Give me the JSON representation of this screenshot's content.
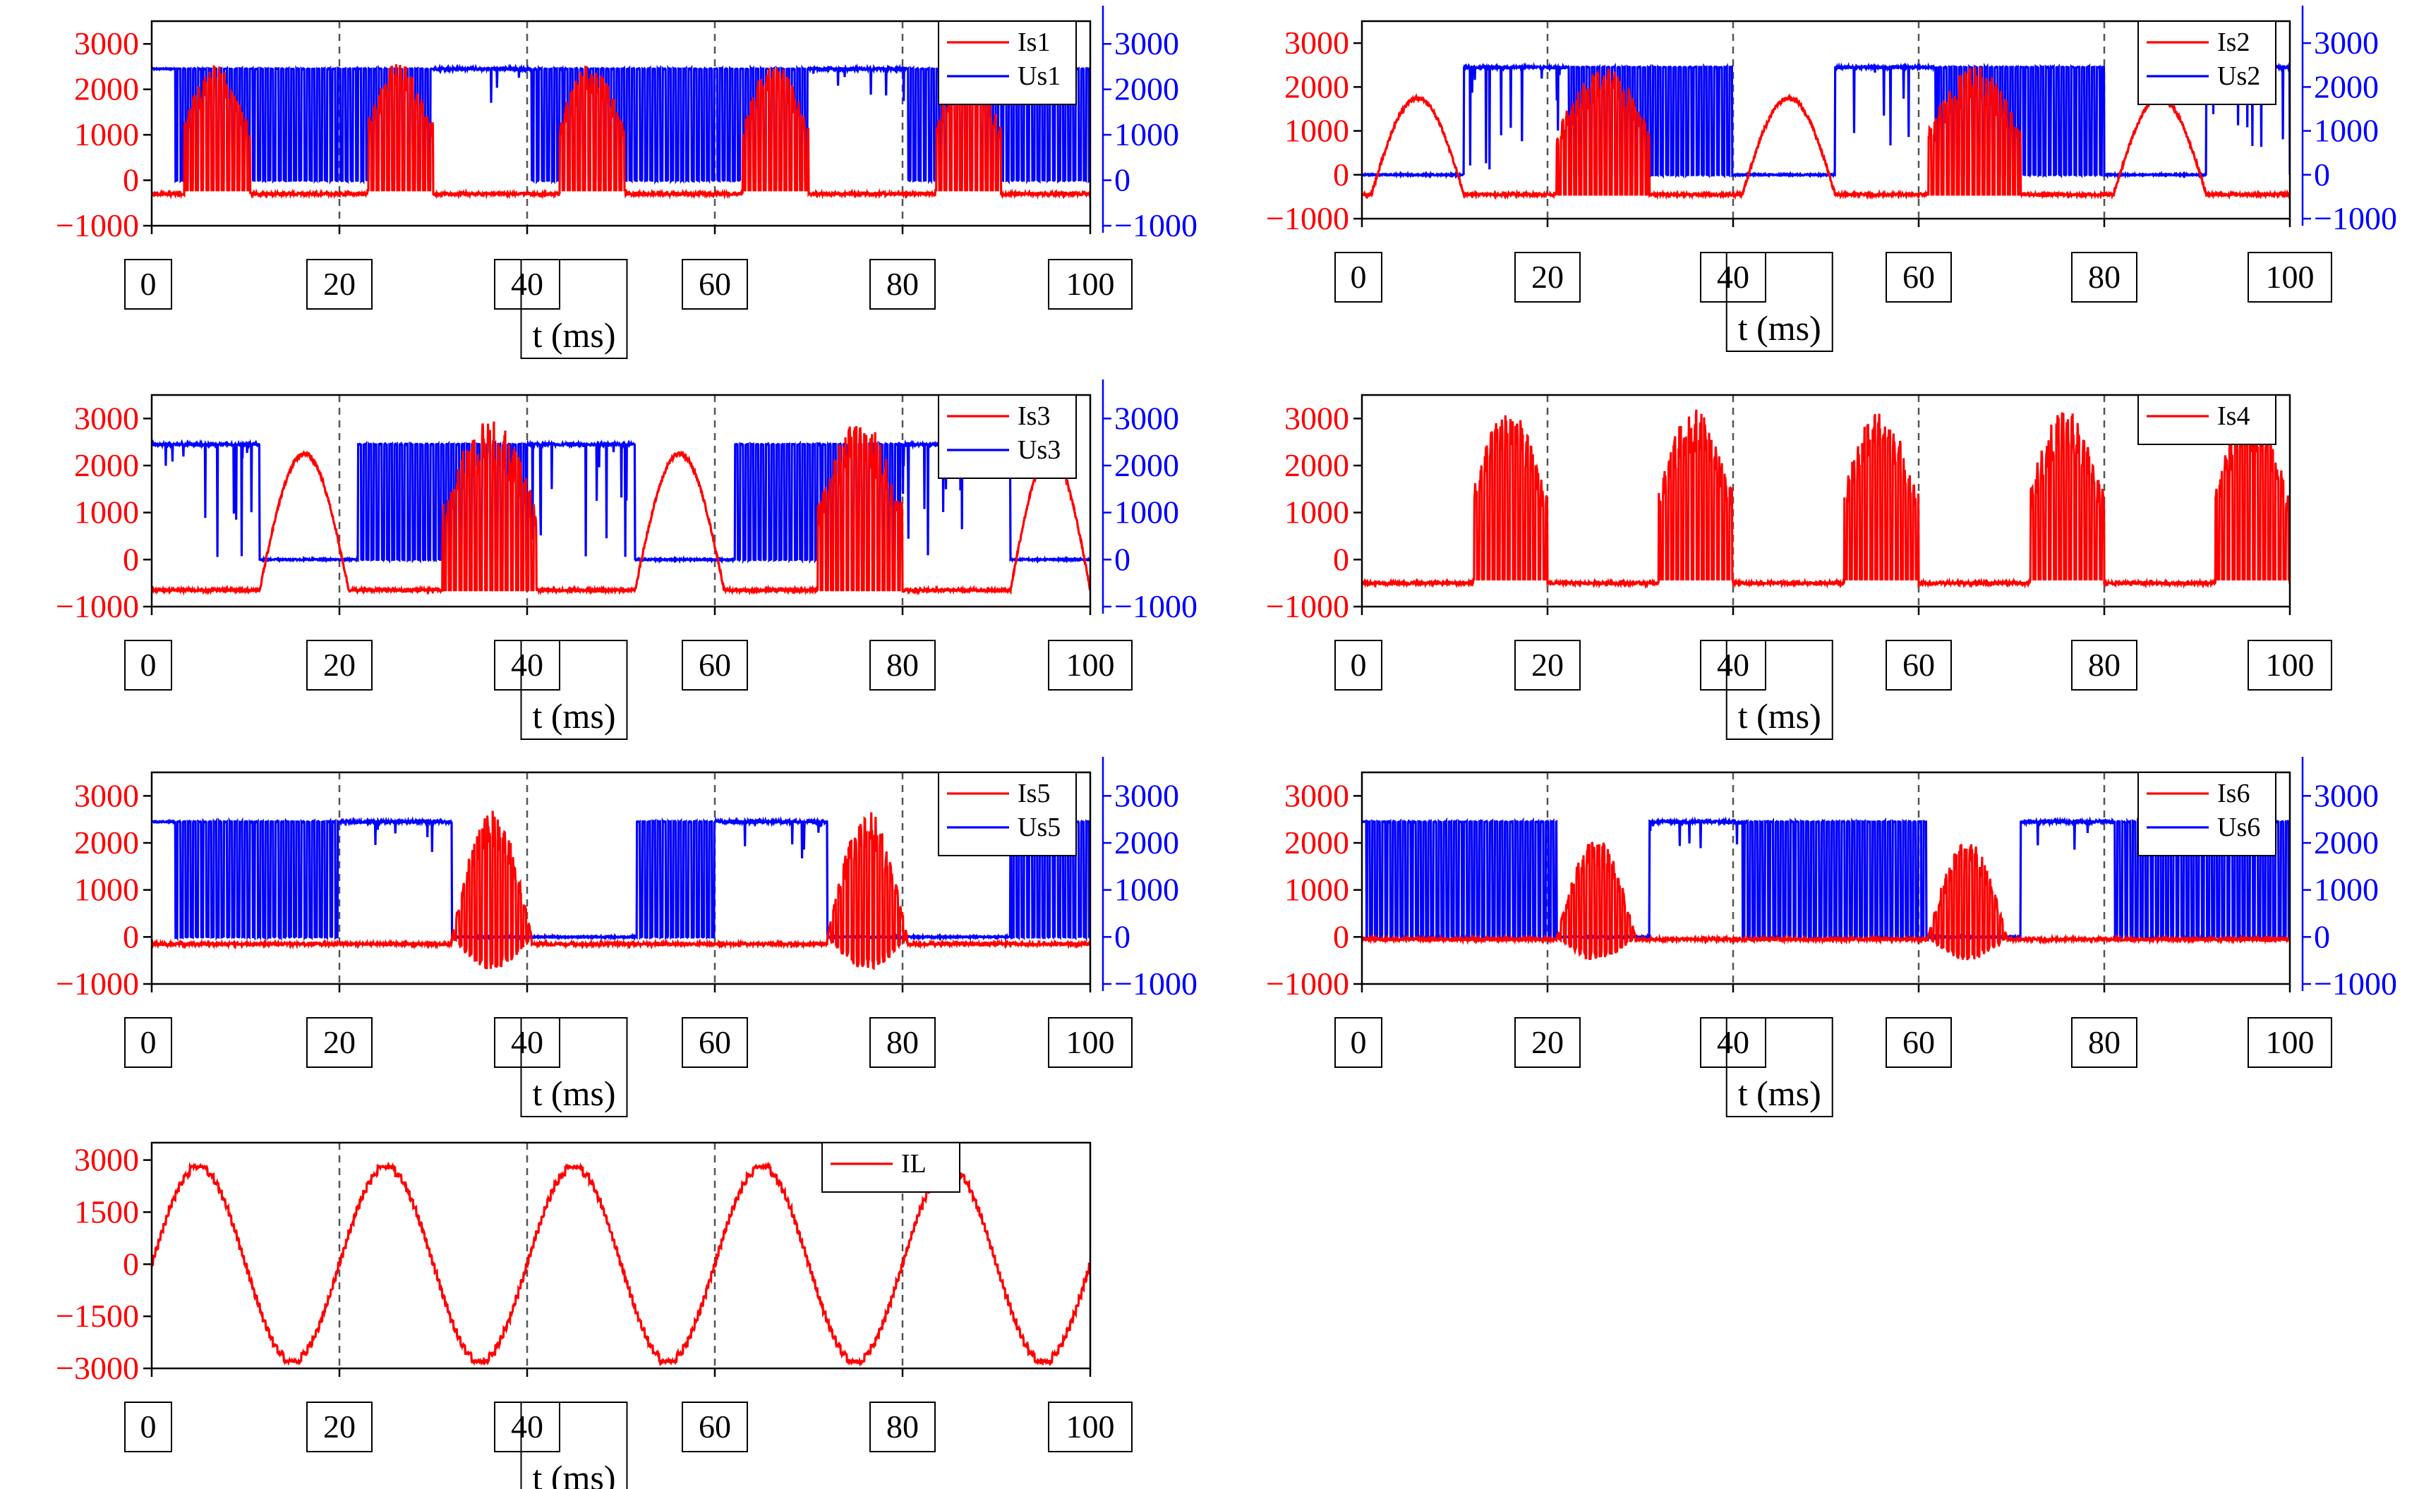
{
  "figure": {
    "xlabel": "t (ms)",
    "colors": {
      "current": "#ff0000",
      "voltage": "#0000ff",
      "axis": "#000000",
      "grid": "#555555"
    }
  },
  "chart_data": [
    {
      "id": "s1",
      "type": "line",
      "x": {
        "label": "t (ms)",
        "range": [
          0,
          100
        ],
        "ticks": [
          0,
          20,
          40,
          60,
          80,
          100
        ],
        "ticklabels": [
          "0",
          "20",
          "40",
          "60",
          "80",
          "100"
        ]
      },
      "yleft": {
        "range": [
          -1000,
          3500
        ],
        "ticks": [
          -1000,
          0,
          1000,
          2000,
          3000
        ],
        "ticklabels": [
          "−1000",
          "0",
          "1000",
          "2000",
          "3000"
        ]
      },
      "yright": {
        "range": [
          -1000,
          3500
        ],
        "ticks": [
          -1000,
          0,
          1000,
          2000,
          3000
        ],
        "ticklabels": [
          "−1000",
          "0",
          "1000",
          "2000",
          "3000"
        ]
      },
      "grid_x": [
        20,
        40,
        60,
        80
      ],
      "series": [
        {
          "name": "Is1",
          "axis": "left",
          "color": "#ff0000",
          "kind": "switchcurrent",
          "on_windows": [
            [
              3.5,
              10.5
            ],
            [
              23,
              30
            ],
            [
              43.5,
              50.5
            ],
            [
              63,
              70
            ],
            [
              83.5,
              90.5
            ]
          ],
          "pulse_peak": 2600,
          "base": -300
        },
        {
          "name": "Us1",
          "axis": "right",
          "color": "#0000ff",
          "kind": "switchvoltage",
          "blocked": [
            [
              30,
              40.5
            ],
            [
              70,
              80.5
            ]
          ],
          "pulse_start": 2.5,
          "high": 2450,
          "low": 0,
          "spikes": [
            10.8,
            11.5,
            12.1,
            12.8
          ]
        }
      ]
    },
    {
      "id": "s2",
      "type": "line",
      "x": {
        "label": "t (ms)",
        "range": [
          0,
          100
        ],
        "ticks": [
          0,
          20,
          40,
          60,
          80,
          100
        ],
        "ticklabels": [
          "0",
          "20",
          "40",
          "60",
          "80",
          "100"
        ]
      },
      "yleft": {
        "range": [
          -1000,
          3500
        ],
        "ticks": [
          -1000,
          0,
          1000,
          2000,
          3000
        ],
        "ticklabels": [
          "−1000",
          "0",
          "1000",
          "2000",
          "3000"
        ]
      },
      "yright": {
        "range": [
          -1000,
          3500
        ],
        "ticks": [
          -1000,
          0,
          1000,
          2000,
          3000
        ],
        "ticklabels": [
          "−1000",
          "0",
          "1000",
          "2000",
          "3000"
        ]
      },
      "grid_x": [
        20,
        40,
        60,
        80
      ],
      "series": [
        {
          "name": "Is2",
          "axis": "left",
          "color": "#ff0000",
          "kind": "diodecurrent",
          "diode_windows": [
            [
              1,
              11
            ],
            [
              41,
              51
            ],
            [
              81,
              91
            ]
          ],
          "pulse_windows": [
            [
              21,
              31
            ],
            [
              61,
              71
            ]
          ],
          "hump_peak": 1750,
          "pulse_peak": 2500,
          "base": -450
        },
        {
          "name": "Us2",
          "axis": "right",
          "color": "#0000ff",
          "kind": "switchvoltage2",
          "low_windows": [
            [
              0,
              11
            ],
            [
              40,
              51
            ],
            [
              80,
              91
            ]
          ],
          "high_windows": [
            [
              11,
              22
            ],
            [
              51,
              62
            ],
            [
              91,
              100
            ]
          ],
          "pulse_windows": [
            [
              22,
              40
            ],
            [
              62,
              80
            ]
          ],
          "high": 2450,
          "low": 0
        }
      ]
    },
    {
      "id": "s3",
      "type": "line",
      "x": {
        "label": "t (ms)",
        "range": [
          0,
          100
        ],
        "ticks": [
          0,
          20,
          40,
          60,
          80,
          100
        ],
        "ticklabels": [
          "0",
          "20",
          "40",
          "60",
          "80",
          "100"
        ]
      },
      "yleft": {
        "range": [
          -1000,
          3500
        ],
        "ticks": [
          -1000,
          0,
          1000,
          2000,
          3000
        ],
        "ticklabels": [
          "−1000",
          "0",
          "1000",
          "2000",
          "3000"
        ]
      },
      "yright": {
        "range": [
          -1000,
          3500
        ],
        "ticks": [
          -1000,
          0,
          1000,
          2000,
          3000
        ],
        "ticklabels": [
          "−1000",
          "0",
          "1000",
          "2000",
          "3000"
        ]
      },
      "grid_x": [
        20,
        40,
        60,
        80
      ],
      "series": [
        {
          "name": "Is3",
          "axis": "left",
          "color": "#ff0000",
          "kind": "diodecurrent",
          "diode_windows": [
            [
              11.5,
              21
            ],
            [
              51.5,
              61
            ],
            [
              91.5,
              100
            ]
          ],
          "pulse_windows": [
            [
              31,
              41
            ],
            [
              71,
              80
            ]
          ],
          "hump_peak": 2250,
          "pulse_peak": 3000,
          "base": -650
        },
        {
          "name": "Us3",
          "axis": "right",
          "color": "#0000ff",
          "kind": "switchvoltage2",
          "low_windows": [
            [
              11.5,
              22
            ],
            [
              51.5,
              62
            ],
            [
              91.5,
              100
            ]
          ],
          "high_windows": [
            [
              0,
              11.5
            ],
            [
              40,
              51.5
            ],
            [
              80,
              91.5
            ]
          ],
          "pulse_windows": [
            [
              22,
              40
            ],
            [
              62,
              80
            ]
          ],
          "high": 2450,
          "low": 0
        }
      ]
    },
    {
      "id": "s4",
      "type": "line",
      "x": {
        "label": "t (ms)",
        "range": [
          0,
          100
        ],
        "ticks": [
          0,
          20,
          40,
          60,
          80,
          100
        ],
        "ticklabels": [
          "0",
          "20",
          "40",
          "60",
          "80",
          "100"
        ]
      },
      "yleft": {
        "range": [
          -1000,
          3500
        ],
        "ticks": [
          -1000,
          0,
          1000,
          2000,
          3000
        ],
        "ticklabels": [
          "−1000",
          "0",
          "1000",
          "2000",
          "3000"
        ]
      },
      "grid_x": [
        20,
        40,
        60,
        80
      ],
      "series": [
        {
          "name": "Is4",
          "axis": "left",
          "color": "#ff0000",
          "kind": "switchcurrent",
          "on_windows": [
            [
              12,
              20
            ],
            [
              32,
              40
            ],
            [
              52,
              60
            ],
            [
              72,
              80
            ],
            [
              92,
              100
            ]
          ],
          "pulse_peak": 3200,
          "base": -500
        }
      ]
    },
    {
      "id": "s5",
      "type": "line",
      "x": {
        "label": "t (ms)",
        "range": [
          0,
          100
        ],
        "ticks": [
          0,
          20,
          40,
          60,
          80,
          100
        ],
        "ticklabels": [
          "0",
          "20",
          "40",
          "60",
          "80",
          "100"
        ]
      },
      "yleft": {
        "range": [
          -1000,
          3500
        ],
        "ticks": [
          -1000,
          0,
          1000,
          2000,
          3000
        ],
        "ticklabels": [
          "−1000",
          "0",
          "1000",
          "2000",
          "3000"
        ]
      },
      "yright": {
        "range": [
          -1000,
          3500
        ],
        "ticks": [
          -1000,
          0,
          1000,
          2000,
          3000
        ],
        "ticklabels": [
          "−1000",
          "0",
          "1000",
          "2000",
          "3000"
        ]
      },
      "grid_x": [
        20,
        40,
        60,
        80
      ],
      "series": [
        {
          "name": "Is5",
          "axis": "left",
          "color": "#ff0000",
          "kind": "bipolarcurrent",
          "on_windows": [
            [
              32,
              40.5
            ],
            [
              72,
              80.5
            ]
          ],
          "pulse_peak": 2700,
          "neg_peak": -700,
          "base": -150
        },
        {
          "name": "Us5",
          "axis": "right",
          "color": "#0000ff",
          "kind": "switchvoltage",
          "blocked": [
            [
              20,
              32
            ],
            [
              60,
              72
            ]
          ],
          "low_windows": [
            [
              32,
              51.5
            ],
            [
              72,
              91.5
            ]
          ],
          "pulse_start": 2.5,
          "high": 2450,
          "low": 0,
          "spikes": []
        }
      ]
    },
    {
      "id": "s6",
      "type": "line",
      "x": {
        "label": "t (ms)",
        "range": [
          0,
          100
        ],
        "ticks": [
          0,
          20,
          40,
          60,
          80,
          100
        ],
        "ticklabels": [
          "0",
          "20",
          "40",
          "60",
          "80",
          "100"
        ]
      },
      "yleft": {
        "range": [
          -1000,
          3500
        ],
        "ticks": [
          -1000,
          0,
          1000,
          2000,
          3000
        ],
        "ticklabels": [
          "−1000",
          "0",
          "1000",
          "2000",
          "3000"
        ]
      },
      "yright": {
        "range": [
          -1000,
          3500
        ],
        "ticks": [
          -1000,
          0,
          1000,
          2000,
          3000
        ],
        "ticklabels": [
          "−1000",
          "0",
          "1000",
          "2000",
          "3000"
        ]
      },
      "grid_x": [
        20,
        40,
        60,
        80
      ],
      "series": [
        {
          "name": "Is6",
          "axis": "left",
          "color": "#ff0000",
          "kind": "bipolarcurrent",
          "on_windows": [
            [
              21,
              29.5
            ],
            [
              61,
              69.5
            ]
          ],
          "pulse_peak": 2100,
          "neg_peak": -500,
          "base": -50
        },
        {
          "name": "Us6",
          "axis": "right",
          "color": "#0000ff",
          "kind": "switchvoltage",
          "blocked": [
            [
              31,
              41
            ],
            [
              71,
              81
            ]
          ],
          "low_windows": [
            [
              21,
              31
            ],
            [
              61,
              71
            ]
          ],
          "pulse_start": 0.5,
          "high": 2450,
          "low": 0,
          "spikes": []
        }
      ]
    },
    {
      "id": "il",
      "type": "line",
      "x": {
        "label": "t (ms)",
        "range": [
          0,
          100
        ],
        "ticks": [
          0,
          20,
          40,
          60,
          80,
          100
        ],
        "ticklabels": [
          "0",
          "20",
          "40",
          "60",
          "80",
          "100"
        ]
      },
      "yleft": {
        "range": [
          -3000,
          3500
        ],
        "ticks": [
          -3000,
          -1500,
          0,
          1500,
          3000
        ],
        "ticklabels": [
          "−3000",
          "−1500",
          "0",
          "1500",
          "3000"
        ]
      },
      "grid_x": [
        20,
        40,
        60,
        80
      ],
      "series": [
        {
          "name": "IL",
          "axis": "left",
          "color": "#ff0000",
          "kind": "staircase_sine",
          "amplitude": 2800,
          "frequency_hz": 50,
          "phase_deg": 0,
          "steps": 12
        }
      ]
    }
  ]
}
